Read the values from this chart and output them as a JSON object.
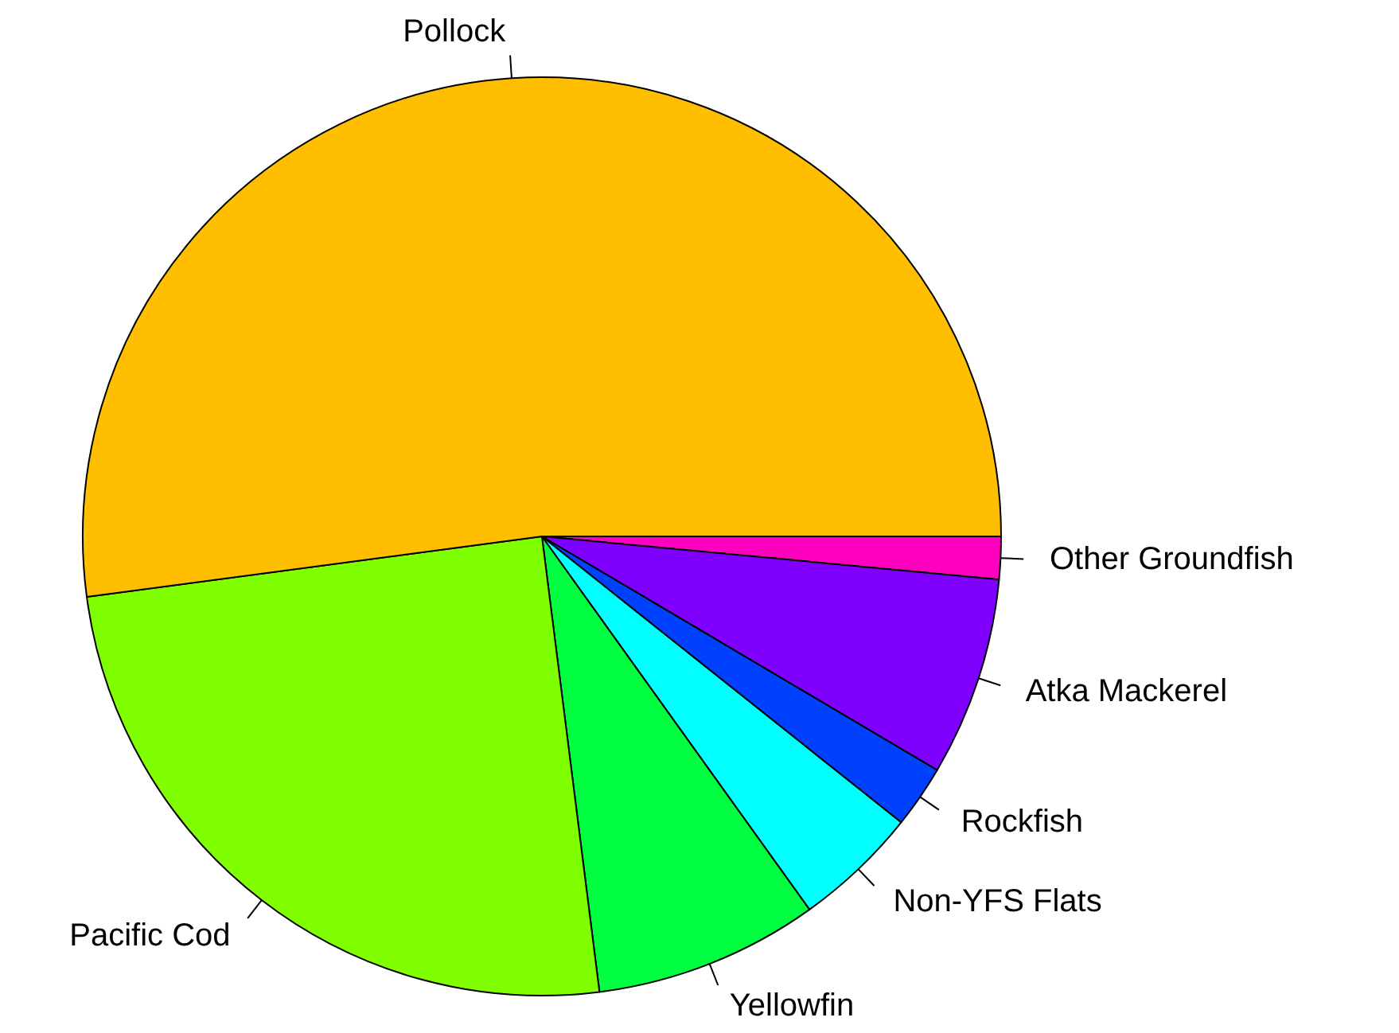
{
  "chart_data": {
    "type": "pie",
    "categories": [
      "Pollock",
      "Pacific Cod",
      "Yellowfin",
      "Non-YFS Flats",
      "Rockfish",
      "Atka Mackerel",
      "Other Groundfish"
    ],
    "values": [
      52.1,
      24.9,
      7.9,
      4.4,
      2.2,
      7.0,
      1.5
    ],
    "colors": [
      "#ffbf00",
      "#80ff00",
      "#00ff40",
      "#00ffff",
      "#0040ff",
      "#8000ff",
      "#ff00bf"
    ]
  }
}
